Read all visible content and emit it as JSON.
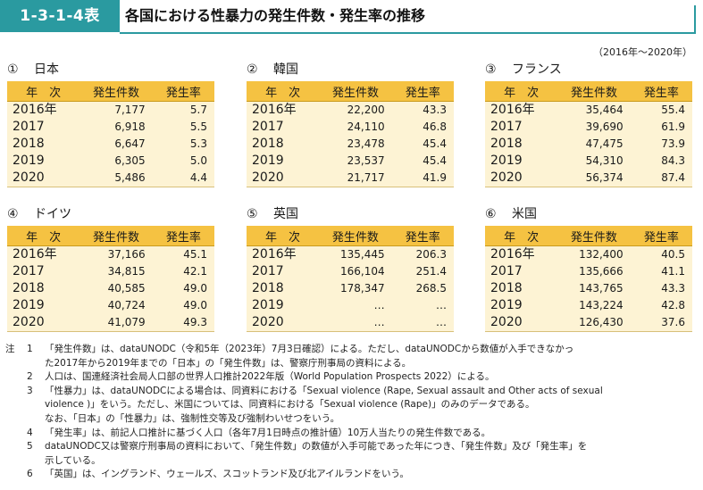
{
  "header": {
    "code": "1-3-1-4表",
    "title": "各国における性暴力の発生件数・発生率の推移",
    "period": "（2016年～2020年）"
  },
  "columns": [
    "年　次",
    "発生件数",
    "発生率"
  ],
  "countries": [
    {
      "num": "①",
      "name": "日本",
      "rows": [
        {
          "year": "2016年",
          "count": "7,177",
          "rate": "5.7"
        },
        {
          "year": "2017",
          "count": "6,918",
          "rate": "5.5"
        },
        {
          "year": "2018",
          "count": "6,647",
          "rate": "5.3"
        },
        {
          "year": "2019",
          "count": "6,305",
          "rate": "5.0"
        },
        {
          "year": "2020",
          "count": "5,486",
          "rate": "4.4"
        }
      ]
    },
    {
      "num": "②",
      "name": "韓国",
      "rows": [
        {
          "year": "2016年",
          "count": "22,200",
          "rate": "43.3"
        },
        {
          "year": "2017",
          "count": "24,110",
          "rate": "46.8"
        },
        {
          "year": "2018",
          "count": "23,478",
          "rate": "45.4"
        },
        {
          "year": "2019",
          "count": "23,537",
          "rate": "45.4"
        },
        {
          "year": "2020",
          "count": "21,717",
          "rate": "41.9"
        }
      ]
    },
    {
      "num": "③",
      "name": "フランス",
      "rows": [
        {
          "year": "2016年",
          "count": "35,464",
          "rate": "55.4"
        },
        {
          "year": "2017",
          "count": "39,690",
          "rate": "61.9"
        },
        {
          "year": "2018",
          "count": "47,475",
          "rate": "73.9"
        },
        {
          "year": "2019",
          "count": "54,310",
          "rate": "84.3"
        },
        {
          "year": "2020",
          "count": "56,374",
          "rate": "87.4"
        }
      ]
    },
    {
      "num": "④",
      "name": "ドイツ",
      "rows": [
        {
          "year": "2016年",
          "count": "37,166",
          "rate": "45.1"
        },
        {
          "year": "2017",
          "count": "34,815",
          "rate": "42.1"
        },
        {
          "year": "2018",
          "count": "40,585",
          "rate": "49.0"
        },
        {
          "year": "2019",
          "count": "40,724",
          "rate": "49.0"
        },
        {
          "year": "2020",
          "count": "41,079",
          "rate": "49.3"
        }
      ]
    },
    {
      "num": "⑤",
      "name": "英国",
      "rows": [
        {
          "year": "2016年",
          "count": "135,445",
          "rate": "206.3"
        },
        {
          "year": "2017",
          "count": "166,104",
          "rate": "251.4"
        },
        {
          "year": "2018",
          "count": "178,347",
          "rate": "268.5"
        },
        {
          "year": "2019",
          "count": "…",
          "rate": "…"
        },
        {
          "year": "2020",
          "count": "…",
          "rate": "…"
        }
      ]
    },
    {
      "num": "⑥",
      "name": "米国",
      "rows": [
        {
          "year": "2016年",
          "count": "132,400",
          "rate": "40.5"
        },
        {
          "year": "2017",
          "count": "135,666",
          "rate": "41.1"
        },
        {
          "year": "2018",
          "count": "143,765",
          "rate": "43.3"
        },
        {
          "year": "2019",
          "count": "143,224",
          "rate": "42.8"
        },
        {
          "year": "2020",
          "count": "126,430",
          "rate": "37.6"
        }
      ]
    }
  ],
  "notes": {
    "label": "注",
    "items": [
      {
        "idx": "1",
        "lines": [
          "「発生件数」は、dataUNODC（令和5年（2023年）7月3日確認）による。ただし、dataUNODCから数値が入手できなかっ",
          "た2017年から2019年までの「日本」の「発生件数」は、警察庁刑事局の資料による。"
        ]
      },
      {
        "idx": "2",
        "lines": [
          "人口は、国連経済社会局人口部の世界人口推計2022年版（World Population Prospects 2022）による。"
        ]
      },
      {
        "idx": "3",
        "lines": [
          "「性暴力」は、dataUNODCによる場合は、同資料における「Sexual violence (Rape, Sexual assault and Other acts of sexual",
          "violence )」をいう。ただし、米国については、同資料における「Sexual violence (Rape)」のみのデータである。",
          "なお、「日本」の「性暴力」は、強制性交等及び強制わいせつをいう。"
        ]
      },
      {
        "idx": "4",
        "lines": [
          "「発生率」は、前記人口推計に基づく人口（各年7月1日時点の推計値）10万人当たりの発生件数である。"
        ]
      },
      {
        "idx": "5",
        "lines": [
          "dataUNODC又は警察庁刑事局の資料において、「発生件数」の数値が入手可能であった年につき、「発生件数」及び「発生率」を",
          "示している。"
        ]
      },
      {
        "idx": "6",
        "lines": [
          "「英国」は、イングランド、ウェールズ、スコットランド及び北アイルランドをいう。"
        ]
      }
    ]
  }
}
